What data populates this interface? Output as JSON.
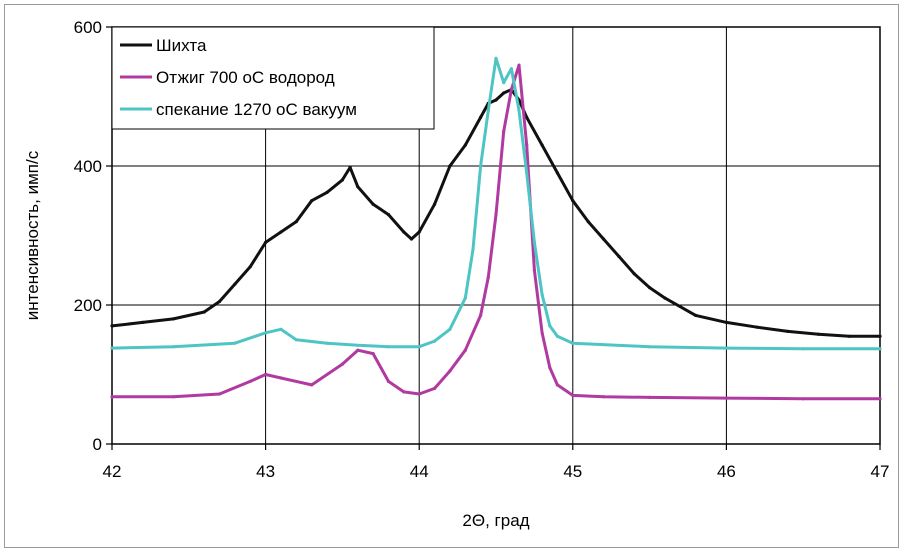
{
  "chart_data": {
    "type": "line",
    "xlabel": "2Θ, град",
    "ylabel": "интенсивность, имп/с",
    "xlim": [
      42,
      47
    ],
    "ylim": [
      0,
      600
    ],
    "x_ticks": [
      "42",
      "43",
      "44",
      "45",
      "46",
      "47"
    ],
    "y_ticks": [
      "0",
      "200",
      "400",
      "600"
    ],
    "grid": true,
    "legend_position": "top-left",
    "series": [
      {
        "name": "Шихта",
        "color": "#111111",
        "x": [
          42.0,
          42.2,
          42.4,
          42.6,
          42.7,
          42.8,
          42.9,
          43.0,
          43.1,
          43.2,
          43.3,
          43.4,
          43.5,
          43.55,
          43.6,
          43.7,
          43.8,
          43.9,
          43.95,
          44.0,
          44.1,
          44.2,
          44.3,
          44.4,
          44.45,
          44.5,
          44.55,
          44.6,
          44.65,
          44.7,
          44.8,
          44.9,
          45.0,
          45.1,
          45.2,
          45.3,
          45.4,
          45.5,
          45.6,
          45.8,
          46.0,
          46.2,
          46.4,
          46.6,
          46.8,
          47.0
        ],
        "y": [
          170,
          175,
          180,
          190,
          205,
          230,
          255,
          290,
          305,
          320,
          350,
          362,
          380,
          398,
          370,
          345,
          330,
          305,
          295,
          305,
          345,
          400,
          430,
          470,
          490,
          495,
          505,
          510,
          495,
          470,
          430,
          390,
          350,
          320,
          295,
          270,
          245,
          225,
          210,
          185,
          175,
          168,
          162,
          158,
          155,
          155
        ]
      },
      {
        "name": "Отжиг 700 оС водород",
        "color": "#b03aa0",
        "x": [
          42.0,
          42.4,
          42.7,
          42.9,
          43.0,
          43.1,
          43.3,
          43.5,
          43.6,
          43.7,
          43.8,
          43.9,
          44.0,
          44.1,
          44.2,
          44.3,
          44.4,
          44.45,
          44.5,
          44.55,
          44.6,
          44.65,
          44.7,
          44.75,
          44.8,
          44.85,
          44.9,
          45.0,
          45.2,
          45.5,
          46.0,
          46.5,
          47.0
        ],
        "y": [
          68,
          68,
          72,
          90,
          100,
          95,
          85,
          115,
          135,
          130,
          90,
          75,
          72,
          80,
          105,
          135,
          185,
          240,
          330,
          450,
          510,
          545,
          430,
          250,
          160,
          110,
          85,
          70,
          68,
          67,
          66,
          65,
          65
        ]
      },
      {
        "name": "спекание 1270 оС вакуум",
        "color": "#4fc4c4",
        "x": [
          42.0,
          42.4,
          42.8,
          43.0,
          43.1,
          43.2,
          43.4,
          43.6,
          43.8,
          44.0,
          44.1,
          44.2,
          44.3,
          44.35,
          44.4,
          44.45,
          44.5,
          44.55,
          44.6,
          44.65,
          44.7,
          44.75,
          44.8,
          44.85,
          44.9,
          45.0,
          45.5,
          46.0,
          46.5,
          47.0
        ],
        "y": [
          138,
          140,
          145,
          160,
          165,
          150,
          145,
          142,
          140,
          140,
          148,
          165,
          210,
          280,
          400,
          480,
          555,
          520,
          540,
          480,
          390,
          290,
          215,
          170,
          155,
          145,
          140,
          138,
          137,
          137
        ]
      }
    ]
  }
}
